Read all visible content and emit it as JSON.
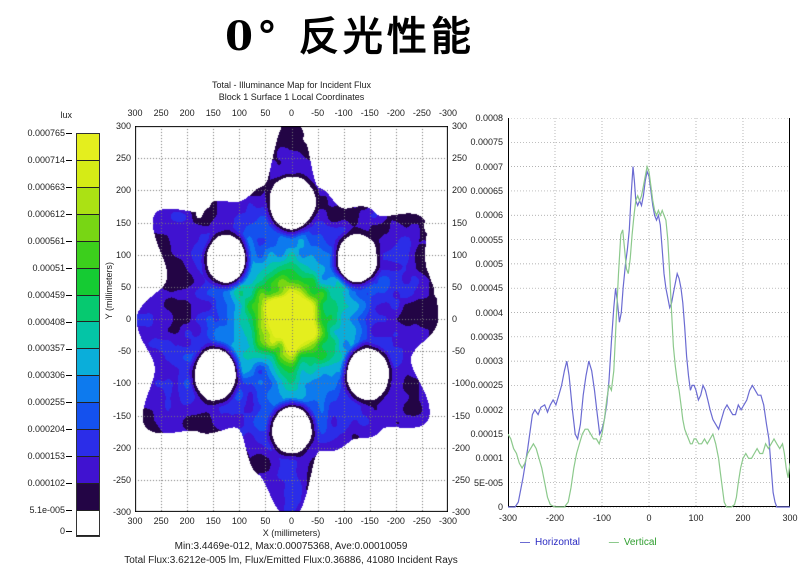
{
  "page": {
    "title": "0°  反光性能"
  },
  "colorbar": {
    "unit_label": "lux",
    "tick_labels": [
      "0.000765",
      "0.000714",
      "0.000663",
      "0.000612",
      "0.000561",
      "0.00051",
      "0.000459",
      "0.000408",
      "0.000357",
      "0.000306",
      "0.000255",
      "0.000204",
      "0.000153",
      "0.000102",
      "5.1e-005",
      "0"
    ],
    "band_colors_top_to_bottom": [
      "#e4ee1e",
      "#d5eb16",
      "#abe114",
      "#78d614",
      "#3ccf1c",
      "#15cb33",
      "#06c970",
      "#04c5a6",
      "#0aaeda",
      "#0d7aee",
      "#1451ee",
      "#2b2de8",
      "#4012d0",
      "#230545"
    ],
    "below_scale_color": "#ffffff"
  },
  "map": {
    "title_line1": "Total - Illuminance Map for Incident Flux",
    "title_line2": "Block 1 Surface 1   Local Coordinates",
    "x_tick_labels": [
      "300",
      "250",
      "200",
      "150",
      "100",
      "50",
      "0",
      "-50",
      "-100",
      "-150",
      "-200",
      "-250",
      "-300"
    ],
    "y_tick_labels": [
      "300",
      "250",
      "200",
      "150",
      "100",
      "50",
      "0",
      "-50",
      "-100",
      "-150",
      "-200",
      "-250",
      "-300"
    ],
    "x_axis_label": "X (millimeters)",
    "y_axis_label": "Y (millimeters)",
    "stats_line1": "Min:3.4469e-012, Max:0.00075368, Ave:0.00010059",
    "stats_line2": "Total Flux:3.6212e-005 lm, Flux/Emitted Flux:0.36886, 41080 Incident Rays"
  },
  "profile_chart": {
    "y_tick_labels": [
      "0.0008",
      "0.00075",
      "0.0007",
      "0.00065",
      "0.0006",
      "0.00055",
      "0.0005",
      "0.00045",
      "0.0004",
      "0.00035",
      "0.0003",
      "0.00025",
      "0.0002",
      "0.00015",
      "0.0001",
      "5E-005",
      "0"
    ],
    "x_tick_labels": [
      "-300",
      "-200",
      "-100",
      "0",
      "100",
      "200",
      "300"
    ],
    "legend": [
      {
        "label": "Horizontal",
        "line_color": "#6b6bd2",
        "text_color": "#2a2ac2"
      },
      {
        "label": "Vertical",
        "line_color": "#8cc98c",
        "text_color": "#2f9e2f"
      }
    ]
  },
  "chart_data": [
    {
      "type": "heatmap",
      "title": "Total - Illuminance Map for Incident Flux",
      "subtitle": "Block 1 Surface 1 Local Coordinates",
      "x_range": [
        300,
        -300
      ],
      "y_range": [
        300,
        -300
      ],
      "units": "millimeters",
      "value_unit": "lux",
      "min": 3.4469e-12,
      "max": 0.00075368,
      "ave": 0.00010059,
      "total_flux_lm": 3.6212e-05,
      "flux_over_emitted_flux": 0.36886,
      "incident_rays": 41080,
      "color_levels": [
        0,
        5.1e-05,
        0.000102,
        0.000153,
        0.000204,
        0.000255,
        0.000306,
        0.000357,
        0.000408,
        0.000459,
        0.00051,
        0.000561,
        0.000612,
        0.000663,
        0.000714,
        0.000765
      ],
      "color_bands_low_to_high": [
        "#230545",
        "#4012d0",
        "#2b2de8",
        "#1451ee",
        "#0d7aee",
        "#0aaeda",
        "#04c5a6",
        "#06c970",
        "#15cb33",
        "#3ccf1c",
        "#78d614",
        "#abe114",
        "#d5eb16",
        "#e4ee1e"
      ],
      "background_color": "#ffffff",
      "pattern": "six-fold snowflake with bright yellow-green center",
      "boundary_radius_deg15": [
        285,
        255,
        300,
        252,
        208,
        232,
        300,
        232,
        208,
        252,
        300,
        255,
        285,
        255,
        300,
        252,
        208,
        232,
        300,
        232,
        208,
        252,
        300,
        255
      ],
      "holes": [
        {
          "x": 0,
          "y": 180,
          "r": 37
        },
        {
          "x": -125,
          "y": 93,
          "r": 33
        },
        {
          "x": 125,
          "y": 93,
          "r": 33
        },
        {
          "x": -145,
          "y": -85,
          "r": 35
        },
        {
          "x": 145,
          "y": -85,
          "r": 35
        },
        {
          "x": 0,
          "y": -172,
          "r": 32
        }
      ],
      "center_peak": {
        "amp": 0.00066,
        "sigma_mm": 55
      },
      "center_halo": {
        "amp": 0.00022,
        "sigma_mm": 130
      },
      "noise_seed": 7,
      "grid_spacing_mm": 50
    },
    {
      "type": "line",
      "xlim": [
        -300,
        300
      ],
      "ylim": [
        0,
        0.0008
      ],
      "grid": "dotted",
      "legend_position": "bottom-left",
      "y_scale": 1e-05,
      "series": [
        {
          "name": "Horizontal",
          "color": "#6b6bd2",
          "points": [
            [
              -300,
              0
            ],
            [
              -285,
              0
            ],
            [
              -278,
              1
            ],
            [
              -268,
              6
            ],
            [
              -258,
              12
            ],
            [
              -248,
              19
            ],
            [
              -243,
              20
            ],
            [
              -236,
              19
            ],
            [
              -230,
              20.5
            ],
            [
              -222,
              21
            ],
            [
              -216,
              19.5
            ],
            [
              -210,
              21
            ],
            [
              -204,
              22
            ],
            [
              -198,
              21
            ],
            [
              -192,
              23
            ],
            [
              -186,
              25
            ],
            [
              -180,
              28
            ],
            [
              -175,
              30
            ],
            [
              -170,
              27
            ],
            [
              -163,
              20
            ],
            [
              -157,
              15
            ],
            [
              -152,
              14
            ],
            [
              -146,
              17
            ],
            [
              -140,
              23
            ],
            [
              -134,
              27
            ],
            [
              -128,
              30
            ],
            [
              -122,
              28
            ],
            [
              -116,
              24
            ],
            [
              -110,
              19
            ],
            [
              -105,
              15
            ],
            [
              -100,
              16
            ],
            [
              -95,
              18
            ],
            [
              -90,
              21
            ],
            [
              -85,
              26
            ],
            [
              -80,
              34
            ],
            [
              -75,
              41
            ],
            [
              -71,
              45
            ],
            [
              -67,
              42
            ],
            [
              -63,
              38
            ],
            [
              -59,
              40
            ],
            [
              -55,
              45
            ],
            [
              -50,
              50
            ],
            [
              -46,
              53
            ],
            [
              -42,
              57
            ],
            [
              -38,
              64
            ],
            [
              -34,
              70
            ],
            [
              -31,
              67
            ],
            [
              -28,
              63
            ],
            [
              -24,
              62
            ],
            [
              -20,
              63
            ],
            [
              -16,
              62
            ],
            [
              -12,
              64
            ],
            [
              -8,
              67
            ],
            [
              -4,
              69
            ],
            [
              0,
              68
            ],
            [
              4,
              65
            ],
            [
              8,
              62
            ],
            [
              12,
              60
            ],
            [
              16,
              59
            ],
            [
              20,
              60
            ],
            [
              24,
              58
            ],
            [
              28,
              53
            ],
            [
              32,
              48
            ],
            [
              36,
              45
            ],
            [
              40,
              43
            ],
            [
              44,
              41
            ],
            [
              48,
              42
            ],
            [
              52,
              44
            ],
            [
              56,
              46
            ],
            [
              60,
              48
            ],
            [
              64,
              47
            ],
            [
              68,
              45
            ],
            [
              72,
              42
            ],
            [
              76,
              37
            ],
            [
              80,
              31
            ],
            [
              84,
              27
            ],
            [
              88,
              24
            ],
            [
              92,
              25
            ],
            [
              96,
              25
            ],
            [
              100,
              24
            ],
            [
              105,
              22
            ],
            [
              110,
              23
            ],
            [
              115,
              25
            ],
            [
              120,
              24
            ],
            [
              125,
              22
            ],
            [
              130,
              20
            ],
            [
              136,
              18
            ],
            [
              142,
              17
            ],
            [
              148,
              16
            ],
            [
              154,
              18
            ],
            [
              160,
              20
            ],
            [
              166,
              21
            ],
            [
              172,
              20
            ],
            [
              178,
              19
            ],
            [
              184,
              19
            ],
            [
              190,
              21
            ],
            [
              196,
              20
            ],
            [
              202,
              21
            ],
            [
              208,
              22
            ],
            [
              214,
              24
            ],
            [
              220,
              25
            ],
            [
              226,
              24
            ],
            [
              232,
              23
            ],
            [
              238,
              23
            ],
            [
              244,
              21
            ],
            [
              250,
              17
            ],
            [
              255,
              14
            ],
            [
              260,
              8
            ],
            [
              264,
              3
            ],
            [
              268,
              1
            ],
            [
              272,
              0
            ],
            [
              280,
              0
            ],
            [
              300,
              0
            ]
          ]
        },
        {
          "name": "Vertical",
          "color": "#8cc98c",
          "points": [
            [
              -300,
              15
            ],
            [
              -294,
              14
            ],
            [
              -288,
              12
            ],
            [
              -282,
              11
            ],
            [
              -276,
              9
            ],
            [
              -270,
              8
            ],
            [
              -264,
              9
            ],
            [
              -258,
              11
            ],
            [
              -252,
              12
            ],
            [
              -246,
              13
            ],
            [
              -240,
              12
            ],
            [
              -234,
              10
            ],
            [
              -228,
              8
            ],
            [
              -222,
              5
            ],
            [
              -216,
              2
            ],
            [
              -210,
              0.5
            ],
            [
              -200,
              0
            ],
            [
              -180,
              0
            ],
            [
              -172,
              1
            ],
            [
              -166,
              4
            ],
            [
              -160,
              8
            ],
            [
              -154,
              11
            ],
            [
              -148,
              13
            ],
            [
              -142,
              15
            ],
            [
              -136,
              16
            ],
            [
              -130,
              16
            ],
            [
              -124,
              15
            ],
            [
              -118,
              14
            ],
            [
              -112,
              14
            ],
            [
              -106,
              13
            ],
            [
              -100,
              15
            ],
            [
              -95,
              18
            ],
            [
              -90,
              22
            ],
            [
              -85,
              25
            ],
            [
              -80,
              24
            ],
            [
              -75,
              28
            ],
            [
              -70,
              38
            ],
            [
              -65,
              48
            ],
            [
              -60,
              56
            ],
            [
              -56,
              57
            ],
            [
              -52,
              53
            ],
            [
              -48,
              49
            ],
            [
              -44,
              48
            ],
            [
              -40,
              51
            ],
            [
              -36,
              56
            ],
            [
              -32,
              60
            ],
            [
              -28,
              63
            ],
            [
              -24,
              64
            ],
            [
              -20,
              63
            ],
            [
              -16,
              64
            ],
            [
              -12,
              66
            ],
            [
              -8,
              68
            ],
            [
              -4,
              70
            ],
            [
              0,
              69
            ],
            [
              4,
              66
            ],
            [
              8,
              63
            ],
            [
              12,
              61
            ],
            [
              16,
              60
            ],
            [
              20,
              61
            ],
            [
              24,
              60
            ],
            [
              28,
              61
            ],
            [
              32,
              60
            ],
            [
              36,
              59
            ],
            [
              40,
              55
            ],
            [
              44,
              48
            ],
            [
              48,
              40
            ],
            [
              52,
              33
            ],
            [
              56,
              29
            ],
            [
              60,
              26
            ],
            [
              64,
              24
            ],
            [
              68,
              21
            ],
            [
              72,
              18
            ],
            [
              76,
              16
            ],
            [
              80,
              15
            ],
            [
              84,
              14
            ],
            [
              88,
              13
            ],
            [
              92,
              13
            ],
            [
              96,
              14
            ],
            [
              100,
              14
            ],
            [
              106,
              13
            ],
            [
              112,
              13
            ],
            [
              118,
              14
            ],
            [
              124,
              13
            ],
            [
              130,
              14
            ],
            [
              136,
              15
            ],
            [
              142,
              13
            ],
            [
              148,
              10
            ],
            [
              152,
              7
            ],
            [
              156,
              4
            ],
            [
              160,
              1
            ],
            [
              165,
              0
            ],
            [
              175,
              0
            ],
            [
              182,
              0.5
            ],
            [
              186,
              2
            ],
            [
              190,
              5
            ],
            [
              195,
              8
            ],
            [
              200,
              10
            ],
            [
              206,
              11
            ],
            [
              212,
              10
            ],
            [
              218,
              10
            ],
            [
              224,
              11
            ],
            [
              230,
              12
            ],
            [
              236,
              11
            ],
            [
              242,
              11
            ],
            [
              248,
              13
            ],
            [
              254,
              12
            ],
            [
              260,
              13
            ],
            [
              266,
              14
            ],
            [
              272,
              13
            ],
            [
              278,
              12
            ],
            [
              284,
              13
            ],
            [
              288,
              11
            ],
            [
              292,
              8
            ],
            [
              296,
              6
            ],
            [
              300,
              9
            ]
          ]
        }
      ]
    }
  ]
}
